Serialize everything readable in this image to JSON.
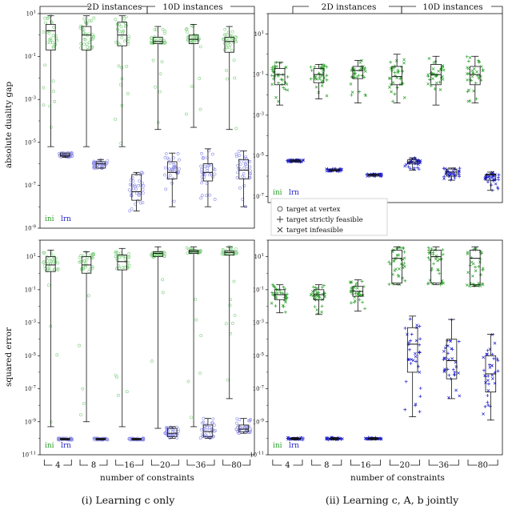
{
  "figure": {
    "headers": {
      "left": "2D instances",
      "right": "10D instances"
    },
    "ylabel_top": "absolute duality gap",
    "ylabel_bottom": "squared error",
    "xlabel": "number of constraints",
    "caption_left": "(i) Learning c only",
    "caption_right": "(ii) Learning c, A, b jointly",
    "groups": [
      "4",
      "8",
      "16",
      "20",
      "36",
      "80"
    ],
    "legend_ini": "ini",
    "legend_lrn": "lrn",
    "legend_markers": [
      {
        "symbol": "circle",
        "label": "target at vertex"
      },
      {
        "symbol": "plus",
        "label": "target strictly feasible"
      },
      {
        "symbol": "cross",
        "label": "target infeasible"
      }
    ],
    "colors": {
      "ini": "#2ca02c",
      "lrn": "#1f1fd0",
      "ini_pts": "#7ccf7c",
      "lrn_pts": "#8a8ae8"
    }
  },
  "chart_data": [
    {
      "id": "gap_c_only",
      "type": "box",
      "panel": "top-left",
      "title": "",
      "ylabel": "absolute duality gap",
      "yscale": "log",
      "ylim_exp": [
        -9,
        1
      ],
      "yticks_exp": [
        -9,
        -7,
        -5,
        -3,
        -1,
        1
      ],
      "categories": [
        "4",
        "8",
        "16",
        "20",
        "36",
        "80"
      ],
      "series": [
        {
          "name": "ini",
          "boxes": [
            {
              "wlo": -5.2,
              "q1": -0.7,
              "med": 0.2,
              "q3": 0.5,
              "whi": 0.9
            },
            {
              "wlo": -5.2,
              "q1": -0.7,
              "med": 0.0,
              "q3": 0.4,
              "whi": 0.9
            },
            {
              "wlo": -5.2,
              "q1": -0.5,
              "med": 0.0,
              "q3": 0.6,
              "whi": 0.9
            },
            {
              "wlo": -4.4,
              "q1": -0.4,
              "med": -0.3,
              "q3": -0.1,
              "whi": 0.4
            },
            {
              "wlo": -4.3,
              "q1": -0.4,
              "med": -0.2,
              "q3": 0.0,
              "whi": 0.5
            },
            {
              "wlo": -4.4,
              "q1": -0.8,
              "med": -0.3,
              "q3": -0.1,
              "whi": 0.4
            }
          ]
        },
        {
          "name": "lrn",
          "boxes": [
            {
              "wlo": -5.7,
              "q1": -5.65,
              "med": -5.6,
              "q3": -5.5,
              "whi": -5.5
            },
            {
              "wlo": -6.2,
              "q1": -6.2,
              "med": -6.0,
              "q3": -5.9,
              "whi": -5.8
            },
            {
              "wlo": -8.2,
              "q1": -7.7,
              "med": -7.3,
              "q3": -6.5,
              "whi": -6.4
            },
            {
              "wlo": -8.0,
              "q1": -6.7,
              "med": -6.4,
              "q3": -5.9,
              "whi": -5.5
            },
            {
              "wlo": -8.0,
              "q1": -6.8,
              "med": -6.4,
              "q3": -6.0,
              "whi": -5.3
            },
            {
              "wlo": -8.0,
              "q1": -6.7,
              "med": -6.3,
              "q3": -5.8,
              "whi": -5.4
            }
          ]
        }
      ]
    },
    {
      "id": "gap_joint",
      "type": "box",
      "panel": "top-right",
      "ylabel": "",
      "yscale": "log",
      "ylim_exp": [
        -7.3,
        2
      ],
      "yticks_exp": [
        -7,
        -5,
        -3,
        -1,
        1
      ],
      "categories": [
        "4",
        "8",
        "16",
        "20",
        "36",
        "80"
      ],
      "series": [
        {
          "name": "ini",
          "boxes": [
            {
              "wlo": -2.5,
              "q1": -1.5,
              "med": -1.0,
              "q3": -0.7,
              "whi": -0.4
            },
            {
              "wlo": -2.2,
              "q1": -1.4,
              "med": -1.0,
              "q3": -0.7,
              "whi": -0.5
            },
            {
              "wlo": -2.4,
              "q1": -1.2,
              "med": -0.8,
              "q3": -0.6,
              "whi": -0.3
            },
            {
              "wlo": -2.4,
              "q1": -1.5,
              "med": -1.1,
              "q3": -0.6,
              "whi": 0.0
            },
            {
              "wlo": -2.5,
              "q1": -1.5,
              "med": -1.0,
              "q3": -0.5,
              "whi": -0.1
            },
            {
              "wlo": -2.4,
              "q1": -1.5,
              "med": -1.0,
              "q3": -0.6,
              "whi": -0.1
            }
          ]
        },
        {
          "name": "lrn",
          "boxes": [
            {
              "wlo": -5.3,
              "q1": -5.3,
              "med": -5.25,
              "q3": -5.2,
              "whi": -5.2
            },
            {
              "wlo": -5.75,
              "q1": -5.75,
              "med": -5.7,
              "q3": -5.65,
              "whi": -5.65
            },
            {
              "wlo": -6.0,
              "q1": -6.0,
              "med": -5.95,
              "q3": -5.9,
              "whi": -5.9
            },
            {
              "wlo": -5.7,
              "q1": -5.4,
              "med": -5.3,
              "q3": -5.2,
              "whi": -5.1
            },
            {
              "wlo": -6.2,
              "q1": -6.0,
              "med": -5.8,
              "q3": -5.65,
              "whi": -5.6
            },
            {
              "wlo": -6.7,
              "q1": -6.2,
              "med": -5.95,
              "q3": -5.9,
              "whi": -5.8
            }
          ]
        }
      ]
    },
    {
      "id": "sqerr_c_only",
      "type": "box",
      "panel": "bottom-left",
      "ylabel": "squared error",
      "yscale": "log",
      "ylim_exp": [
        -11,
        2
      ],
      "yticks_exp": [
        -11,
        -9,
        -7,
        -5,
        -3,
        -1,
        1
      ],
      "categories": [
        "4",
        "8",
        "16",
        "20",
        "36",
        "80"
      ],
      "series": [
        {
          "name": "ini",
          "boxes": [
            {
              "wlo": -9.3,
              "q1": 0.1,
              "med": 0.5,
              "q3": 1.0,
              "whi": 1.4
            },
            {
              "wlo": -9.0,
              "q1": 0.0,
              "med": 0.5,
              "q3": 1.0,
              "whi": 1.3
            },
            {
              "wlo": -9.3,
              "q1": 0.2,
              "med": 0.7,
              "q3": 1.1,
              "whi": 1.5
            },
            {
              "wlo": -9.4,
              "q1": 1.0,
              "med": 1.2,
              "q3": 1.3,
              "whi": 1.6
            },
            {
              "wlo": -9.3,
              "q1": 1.2,
              "med": 1.3,
              "q3": 1.4,
              "whi": 1.6
            },
            {
              "wlo": -7.6,
              "q1": 1.1,
              "med": 1.25,
              "q3": 1.35,
              "whi": 1.6
            }
          ]
        },
        {
          "name": "lrn",
          "boxes": [
            {
              "wlo": -10.1,
              "q1": -10.1,
              "med": -10.05,
              "q3": -10.0,
              "whi": -10.0
            },
            {
              "wlo": -10.1,
              "q1": -10.1,
              "med": -10.05,
              "q3": -10.0,
              "whi": -10.0
            },
            {
              "wlo": -10.1,
              "q1": -10.1,
              "med": -10.05,
              "q3": -10.0,
              "whi": -10.0
            },
            {
              "wlo": -10.0,
              "q1": -9.9,
              "med": -9.7,
              "q3": -9.4,
              "whi": -9.3
            },
            {
              "wlo": -10.0,
              "q1": -9.9,
              "med": -9.6,
              "q3": -9.2,
              "whi": -8.8
            },
            {
              "wlo": -9.7,
              "q1": -9.6,
              "med": -9.45,
              "q3": -9.2,
              "whi": -8.8
            }
          ]
        }
      ]
    },
    {
      "id": "sqerr_joint",
      "type": "box",
      "panel": "bottom-right",
      "ylabel": "",
      "yscale": "log",
      "ylim_exp": [
        -11,
        2
      ],
      "yticks_exp": [
        -11,
        -9,
        -7,
        -5,
        -3,
        -1,
        1
      ],
      "categories": [
        "4",
        "8",
        "16",
        "20",
        "36",
        "80"
      ],
      "series": [
        {
          "name": "ini",
          "boxes": [
            {
              "wlo": -2.4,
              "q1": -1.6,
              "med": -1.3,
              "q3": -1.0,
              "whi": -0.7
            },
            {
              "wlo": -2.5,
              "q1": -1.6,
              "med": -1.3,
              "q3": -1.0,
              "whi": -0.7
            },
            {
              "wlo": -2.3,
              "q1": -1.4,
              "med": -1.1,
              "q3": -0.8,
              "whi": -0.4
            },
            {
              "wlo": -0.7,
              "q1": -0.6,
              "med": 0.9,
              "q3": 1.4,
              "whi": 1.6
            },
            {
              "wlo": -0.7,
              "q1": -0.6,
              "med": 1.0,
              "q3": 1.4,
              "whi": 1.6
            },
            {
              "wlo": -0.8,
              "q1": -0.7,
              "med": 0.9,
              "q3": 1.4,
              "whi": 1.6
            }
          ]
        },
        {
          "name": "lrn",
          "boxes": [
            {
              "wlo": -10.1,
              "q1": -10.05,
              "med": -10.0,
              "q3": -10.0,
              "whi": -9.95
            },
            {
              "wlo": -10.1,
              "q1": -10.05,
              "med": -10.0,
              "q3": -10.0,
              "whi": -9.95
            },
            {
              "wlo": -10.1,
              "q1": -10.05,
              "med": -10.0,
              "q3": -10.0,
              "whi": -9.95
            },
            {
              "wlo": -8.7,
              "q1": -6.0,
              "med": -4.3,
              "q3": -3.3,
              "whi": -2.6
            },
            {
              "wlo": -7.6,
              "q1": -6.4,
              "med": -5.3,
              "q3": -4.0,
              "whi": -2.8
            },
            {
              "wlo": -8.9,
              "q1": -7.2,
              "med": -6.1,
              "q3": -5.0,
              "whi": -3.7
            }
          ]
        }
      ]
    }
  ]
}
